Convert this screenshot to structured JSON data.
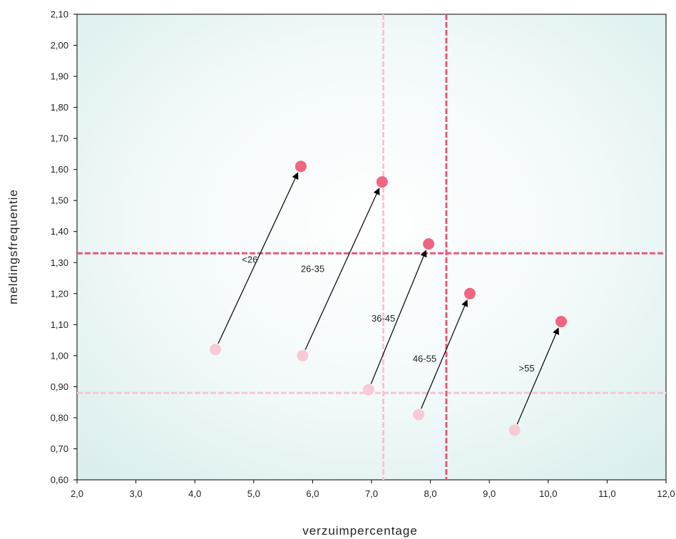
{
  "chart_data": {
    "type": "scatter",
    "xlabel": "verzuimpercentage",
    "ylabel": "meldingsfrequentie",
    "xlim": [
      2.0,
      12.0
    ],
    "ylim": [
      0.6,
      2.1
    ],
    "x_ticks": [
      "2,0",
      "3,0",
      "4,0",
      "5,0",
      "6,0",
      "7,0",
      "8,0",
      "9,0",
      "10,0",
      "11,0",
      "12,0"
    ],
    "y_ticks": [
      "0,60",
      "0,70",
      "0,80",
      "0,90",
      "1,00",
      "1,10",
      "1,20",
      "1,30",
      "1,40",
      "1,50",
      "1,60",
      "1,70",
      "1,80",
      "1,90",
      "2,00",
      "2,10"
    ],
    "grid": false,
    "reference_lines": {
      "earlier": {
        "x": 7.2,
        "y": 0.88,
        "color": "#f6c6d2"
      },
      "later": {
        "x": 8.27,
        "y": 1.33,
        "color": "#e8597a"
      }
    },
    "colors": {
      "earlier_point": "#f7cad6",
      "later_point": "#f06582",
      "background": "#e6f3f3",
      "arrow": "#000000"
    },
    "groups": [
      {
        "label": "<26",
        "from": [
          4.35,
          1.02
        ],
        "to": [
          5.8,
          1.61
        ],
        "label_pos": [
          4.8,
          1.31
        ]
      },
      {
        "label": "26-35",
        "from": [
          5.83,
          1.0
        ],
        "to": [
          7.18,
          1.56
        ],
        "label_pos": [
          5.8,
          1.28
        ]
      },
      {
        "label": "36-45",
        "from": [
          6.95,
          0.89
        ],
        "to": [
          7.97,
          1.36
        ],
        "label_pos": [
          7.0,
          1.12
        ]
      },
      {
        "label": "46-55",
        "from": [
          7.8,
          0.81
        ],
        "to": [
          8.67,
          1.2
        ],
        "label_pos": [
          7.7,
          0.99
        ]
      },
      {
        "label": ">55",
        "from": [
          9.43,
          0.76
        ],
        "to": [
          10.22,
          1.11
        ],
        "label_pos": [
          9.5,
          0.96
        ]
      }
    ]
  }
}
